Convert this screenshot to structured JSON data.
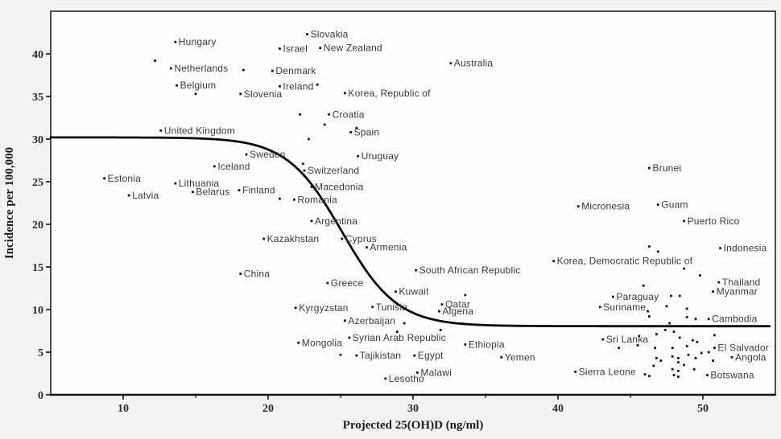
{
  "figure": {
    "background": "#f3f3f1",
    "plot_background": "#fdfdfc",
    "border_color": "#4f4f4f",
    "axis_color": "#111111",
    "marker_color": "#1b1b1b",
    "label_color": "#3a3a3a",
    "curve_color": "#0a0a0a"
  },
  "chart_data": {
    "type": "scatter",
    "title": "",
    "xlabel": "Projected 25(OH)D (ng/ml)",
    "ylabel": "Incidence per 100,000",
    "xlim": [
      5,
      55
    ],
    "ylim": [
      0,
      45
    ],
    "x_ticks": [
      10,
      20,
      30,
      40,
      50
    ],
    "x_minor_ticks": [
      15,
      25,
      35,
      45
    ],
    "y_ticks": [
      0,
      5,
      10,
      15,
      20,
      25,
      30,
      35,
      40
    ],
    "grid": false,
    "legend": null,
    "curve": {
      "type": "sigmoid-fit",
      "upper_plateau": 30.2,
      "lower_plateau": 8.05,
      "inflection_x": 25.1,
      "steepness": 1.9
    },
    "points": [
      {
        "label": "Estonia",
        "x": 8.7,
        "y": 25.4
      },
      {
        "label": "Latvia",
        "x": 10.4,
        "y": 23.4
      },
      {
        "label": "United Kingdom",
        "x": 12.6,
        "y": 31.0
      },
      {
        "label": "Netherlands",
        "x": 13.3,
        "y": 38.3
      },
      {
        "label": "Hungary",
        "x": 13.6,
        "y": 41.4
      },
      {
        "label": "Lithuania",
        "x": 13.6,
        "y": 24.8
      },
      {
        "label": "Belgium",
        "x": 13.7,
        "y": 36.3
      },
      {
        "label": "Belarus",
        "x": 14.8,
        "y": 23.8
      },
      {
        "label": "Iceland",
        "x": 16.3,
        "y": 26.8
      },
      {
        "label": "Finland",
        "x": 18.0,
        "y": 24.0
      },
      {
        "label": "Slovenia",
        "x": 18.1,
        "y": 35.3
      },
      {
        "label": "China",
        "x": 18.1,
        "y": 14.2
      },
      {
        "label": "Sweden",
        "x": 18.5,
        "y": 28.2
      },
      {
        "label": "Kazakhstan",
        "x": 19.7,
        "y": 18.3
      },
      {
        "label": "Denmark",
        "x": 20.3,
        "y": 38.0
      },
      {
        "label": "Israel",
        "x": 20.8,
        "y": 40.6
      },
      {
        "label": "Ireland",
        "x": 20.8,
        "y": 36.2
      },
      {
        "label": "Romania",
        "x": 21.8,
        "y": 22.9
      },
      {
        "label": "Kyrgyzstan",
        "x": 21.9,
        "y": 10.2
      },
      {
        "label": "Mongolia",
        "x": 22.1,
        "y": 6.1
      },
      {
        "label": "Switzerland",
        "x": 22.5,
        "y": 26.3
      },
      {
        "label": "Slovakia",
        "x": 22.7,
        "y": 42.3
      },
      {
        "label": "Macedonia",
        "x": 23.0,
        "y": 24.4
      },
      {
        "label": "Argentina",
        "x": 23.0,
        "y": 20.4
      },
      {
        "label": "New Zealand",
        "x": 23.6,
        "y": 40.7
      },
      {
        "label": "Greece",
        "x": 24.1,
        "y": 13.1
      },
      {
        "label": "Croatia",
        "x": 24.2,
        "y": 32.9
      },
      {
        "label": "Cyprus",
        "x": 25.1,
        "y": 18.3
      },
      {
        "label": "Korea, Republic of",
        "x": 25.3,
        "y": 35.4
      },
      {
        "label": "Azerbaijan",
        "x": 25.3,
        "y": 8.7
      },
      {
        "label": "Syrian Arab Republic",
        "x": 25.6,
        "y": 6.7
      },
      {
        "label": "Spain",
        "x": 25.7,
        "y": 30.8
      },
      {
        "label": "Tajikistan",
        "x": 26.1,
        "y": 4.6
      },
      {
        "label": "Uruguay",
        "x": 26.2,
        "y": 28.0
      },
      {
        "label": "Armenia",
        "x": 26.8,
        "y": 17.3
      },
      {
        "label": "Tunisia",
        "x": 27.2,
        "y": 10.3
      },
      {
        "label": "Lesotho",
        "x": 28.1,
        "y": 1.9
      },
      {
        "label": "Kuwait",
        "x": 28.8,
        "y": 12.1
      },
      {
        "label": "Egypt",
        "x": 30.1,
        "y": 4.6
      },
      {
        "label": "South African Republic",
        "x": 30.2,
        "y": 14.6
      },
      {
        "label": "Malawi",
        "x": 30.3,
        "y": 2.6
      },
      {
        "label": "Algeria",
        "x": 31.8,
        "y": 9.8
      },
      {
        "label": "Qatar",
        "x": 32.0,
        "y": 10.6
      },
      {
        "label": "Australia",
        "x": 32.6,
        "y": 38.9
      },
      {
        "label": "Ethiopia",
        "x": 33.6,
        "y": 5.9
      },
      {
        "label": "Yemen",
        "x": 36.1,
        "y": 4.4
      },
      {
        "label": "Korea, Democratic Republic of",
        "x": 39.7,
        "y": 15.7
      },
      {
        "label": "Sierra Leone",
        "x": 41.2,
        "y": 2.7
      },
      {
        "label": "Micronesia",
        "x": 41.4,
        "y": 22.1
      },
      {
        "label": "Suriname",
        "x": 42.9,
        "y": 10.3
      },
      {
        "label": "Sri Lanka",
        "x": 43.1,
        "y": 6.5
      },
      {
        "label": "Paraguay",
        "x": 43.8,
        "y": 11.5
      },
      {
        "label": "Brunei",
        "x": 46.3,
        "y": 26.6
      },
      {
        "label": "Guam",
        "x": 46.9,
        "y": 22.3
      },
      {
        "label": "Puerto Rico",
        "x": 48.7,
        "y": 20.4
      },
      {
        "label": "Botswana",
        "x": 50.3,
        "y": 2.3
      },
      {
        "label": "Cambodia",
        "x": 50.4,
        "y": 8.9
      },
      {
        "label": "Myanmar",
        "x": 50.7,
        "y": 12.1
      },
      {
        "label": "El Salvador",
        "x": 50.8,
        "y": 5.5
      },
      {
        "label": "Thailand",
        "x": 51.1,
        "y": 13.2
      },
      {
        "label": "Indonesia",
        "x": 51.2,
        "y": 17.2
      },
      {
        "label": "Angola",
        "x": 52.0,
        "y": 4.4
      }
    ],
    "unlabeled_points": [
      [
        12.2,
        39.2
      ],
      [
        18.3,
        38.1
      ],
      [
        15.0,
        35.3
      ],
      [
        23.4,
        36.4
      ],
      [
        22.2,
        32.9
      ],
      [
        23.9,
        31.7
      ],
      [
        26.1,
        31.3
      ],
      [
        22.8,
        30.0
      ],
      [
        22.4,
        27.1
      ],
      [
        20.8,
        23.0
      ],
      [
        33.6,
        11.7
      ],
      [
        29.4,
        8.4
      ],
      [
        28.9,
        7.4
      ],
      [
        31.9,
        7.6
      ],
      [
        25.0,
        4.7
      ],
      [
        46.3,
        17.4
      ],
      [
        46.9,
        16.8
      ],
      [
        48.7,
        14.8
      ],
      [
        49.8,
        14.0
      ],
      [
        45.9,
        12.8
      ],
      [
        47.8,
        11.6
      ],
      [
        48.4,
        11.6
      ],
      [
        47.5,
        10.4
      ],
      [
        48.9,
        10.1
      ],
      [
        46.2,
        9.8
      ],
      [
        46.3,
        9.2
      ],
      [
        48.9,
        9.1
      ],
      [
        49.5,
        8.9
      ],
      [
        47.7,
        8.4
      ],
      [
        47.4,
        7.6
      ],
      [
        48.0,
        7.4
      ],
      [
        46.8,
        7.1
      ],
      [
        45.6,
        6.9
      ],
      [
        48.4,
        6.7
      ],
      [
        49.3,
        6.4
      ],
      [
        50.8,
        7.0
      ],
      [
        44.2,
        5.5
      ],
      [
        45.5,
        5.8
      ],
      [
        46.7,
        5.5
      ],
      [
        47.9,
        5.5
      ],
      [
        48.9,
        5.7
      ],
      [
        49.9,
        4.9
      ],
      [
        50.4,
        5.0
      ],
      [
        49.0,
        4.7
      ],
      [
        49.5,
        4.3
      ],
      [
        48.3,
        4.3
      ],
      [
        47.9,
        4.5
      ],
      [
        46.8,
        4.3
      ],
      [
        47.1,
        4.0
      ],
      [
        48.3,
        3.8
      ],
      [
        48.7,
        3.5
      ],
      [
        46.6,
        3.4
      ],
      [
        47.9,
        3.0
      ],
      [
        48.3,
        2.8
      ],
      [
        49.4,
        3.0
      ],
      [
        50.7,
        4.0
      ],
      [
        46.0,
        2.4
      ],
      [
        46.3,
        2.2
      ],
      [
        48.0,
        2.3
      ],
      [
        48.3,
        2.1
      ],
      [
        49.6,
        6.2
      ]
    ]
  }
}
